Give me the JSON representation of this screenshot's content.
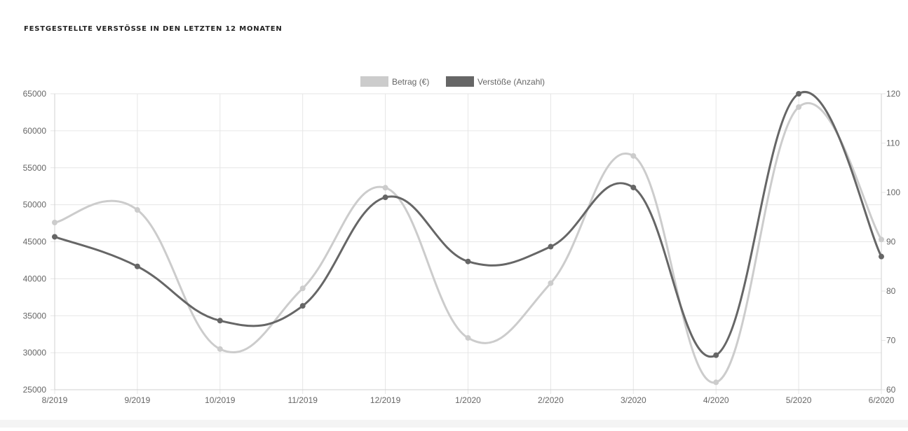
{
  "page": {
    "title": "Festgestellte Verstösse in den letzten 12 Monaten"
  },
  "chart_data": {
    "type": "line",
    "title": "",
    "categories": [
      "8/2019",
      "9/2019",
      "10/2019",
      "11/2019",
      "12/2019",
      "1/2020",
      "2/2020",
      "3/2020",
      "4/2020",
      "5/2020",
      "6/2020"
    ],
    "series": [
      {
        "name": "Betrag (€)",
        "axis": "left",
        "color": "#cccccc",
        "values": [
          47600,
          49300,
          30500,
          38700,
          52300,
          32000,
          39400,
          56600,
          26000,
          63200,
          45300
        ]
      },
      {
        "name": "Verstöße (Anzahl)",
        "axis": "right",
        "color": "#666666",
        "values": [
          91,
          85,
          74,
          77,
          99,
          86,
          89,
          101,
          67,
          120,
          87
        ]
      }
    ],
    "y_left": {
      "min": 25000,
      "max": 65000,
      "ticks": [
        "65000",
        "60000",
        "55000",
        "50000",
        "45000",
        "40000",
        "35000",
        "30000",
        "25000"
      ]
    },
    "y_right": {
      "min": 60,
      "max": 120,
      "ticks": [
        "120",
        "110",
        "100",
        "90",
        "80",
        "70",
        "60"
      ]
    },
    "grid": true,
    "legend": "top-center"
  }
}
